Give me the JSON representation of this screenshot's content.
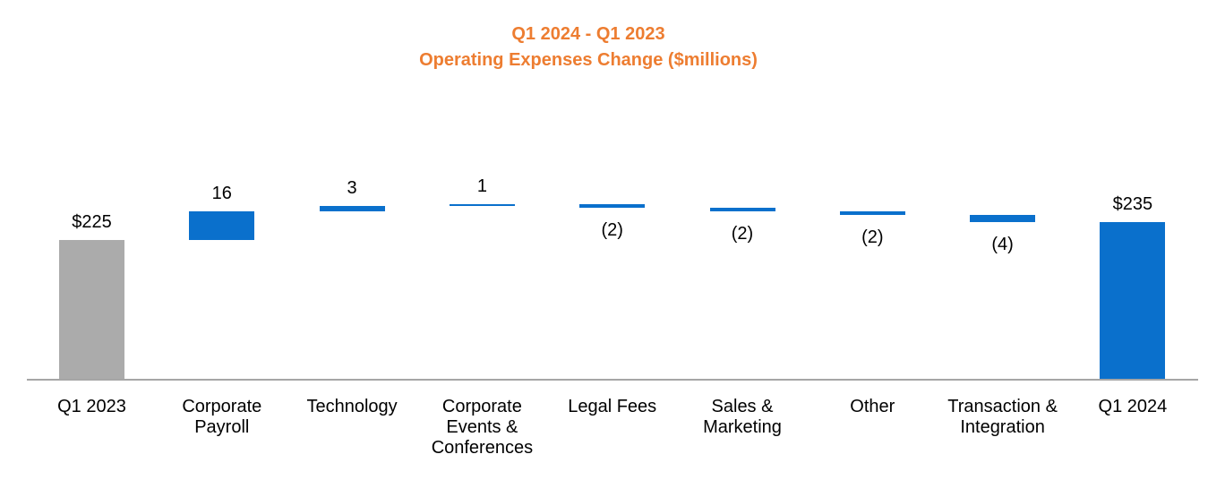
{
  "chart_data": {
    "type": "bar",
    "subtype": "waterfall",
    "title": "Q1 2024 - Q1 2023",
    "subtitle": "Operating Expenses Change ($millions)",
    "unit": "$millions",
    "legend": "none",
    "grid": false,
    "y_axis_visible": false,
    "implied_y_min": 147,
    "categories": [
      "Q1 2023",
      "Corporate Payroll",
      "Technology",
      "Corporate Events & Conferences",
      "Legal Fees",
      "Sales & Marketing",
      "Other",
      "Transaction & Integration",
      "Q1 2024"
    ],
    "bars": [
      {
        "category": "Q1 2023",
        "role": "total",
        "value": 225,
        "label": "$225",
        "label_position": "above",
        "start": 0,
        "end": 225,
        "color_key": "total_start"
      },
      {
        "category": "Corporate Payroll",
        "role": "increase",
        "value": 16,
        "label": "16",
        "label_position": "above",
        "start": 225,
        "end": 241,
        "color_key": "change"
      },
      {
        "category": "Technology",
        "role": "increase",
        "value": 3,
        "label": "3",
        "label_position": "above",
        "start": 241,
        "end": 244,
        "color_key": "change"
      },
      {
        "category": "Corporate Events & Conferences",
        "role": "increase",
        "value": 1,
        "label": "1",
        "label_position": "above",
        "start": 244,
        "end": 245,
        "color_key": "change"
      },
      {
        "category": "Legal Fees",
        "role": "decrease",
        "value": -2,
        "label": "(2)",
        "label_position": "below",
        "start": 245,
        "end": 243,
        "color_key": "change"
      },
      {
        "category": "Sales & Marketing",
        "role": "decrease",
        "value": -2,
        "label": "(2)",
        "label_position": "below",
        "start": 243,
        "end": 241,
        "color_key": "change"
      },
      {
        "category": "Other",
        "role": "decrease",
        "value": -2,
        "label": "(2)",
        "label_position": "below",
        "start": 241,
        "end": 239,
        "color_key": "change"
      },
      {
        "category": "Transaction & Integration",
        "role": "decrease",
        "value": -4,
        "label": "(4)",
        "label_position": "below",
        "start": 239,
        "end": 235,
        "color_key": "change"
      },
      {
        "category": "Q1 2024",
        "role": "total",
        "value": 235,
        "label": "$235",
        "label_position": "above",
        "start": 0,
        "end": 235,
        "color_key": "total_end"
      }
    ],
    "colors": {
      "total_start": "#ababab",
      "change": "#0a70cc",
      "total_end": "#0a70cc",
      "axis_line": "#a6a6a6",
      "title": "#ed7d31",
      "label_text": "#000000"
    }
  }
}
